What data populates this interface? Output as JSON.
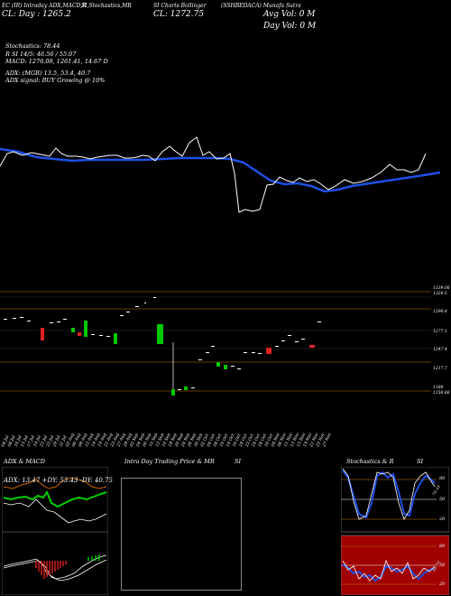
{
  "header": {
    "tabs": [
      "EC (IR) Intraday ADX,MACD,R",
      "SI,Stochastics,MR",
      "SI Charts  Bollinger",
      "(SSHBEDACA) Munafa Sutra"
    ],
    "open_line": "CL:  Day : 1265.2",
    "close_big": "CL: 1272.75",
    "avg_vol": "Avg Vol: 0   M",
    "day_vol": "Day Vol: 0   M"
  },
  "indicators": {
    "stochastics": "Stochastics: 78.44",
    "rsi": "R           SI 14/5: 46.56  / 55.07",
    "macd": "MACD: 1276.08, 1261.41,  14.67 D",
    "adx": "ADX:                       (MGR) 13.5,  53.4,  40.7",
    "adx_signal": "ADX  signal:                         BUY Growing @ 10%"
  },
  "price_axis": {
    "labels": [
      "1339.06",
      "1326.5",
      "1296.8",
      "1277.1",
      "1247.4",
      "1217.7",
      "1188",
      "1158.66"
    ]
  },
  "date_axis": {
    "labels": [
      "04 Jul",
      "08 Jul",
      "10 Jul",
      "15 Jul",
      "17 Jul",
      "19 Jul",
      "23 Jul",
      "25 Jul",
      "29 Jul",
      "31 Jul",
      "02 Aug",
      "06 Aug",
      "08 Aug",
      "12 Aug",
      "14 Aug",
      "19 Aug",
      "21 Aug",
      "23 Aug",
      "27 Aug",
      "29 Aug",
      "02 Sep",
      "04 Sep",
      "06 Sep",
      "10 Sep",
      "12 Sep",
      "16 Sep",
      "18 Sep",
      "20 Sep",
      "24 Sep",
      "26 Sep",
      "30 Sep",
      "02 Oct",
      "04 Oct",
      "08 Oct",
      "10 Oct",
      "14 Oct",
      "16 Oct",
      "18 Oct",
      "22 Oct",
      "24 Oct",
      "28 Oct",
      "30 Oct",
      "04 Nov",
      "06 Nov",
      "11 Nov",
      "13 Nov",
      "15 Nov",
      "19 Nov",
      "21 Nov",
      "25 Nov",
      "27 Nov"
    ]
  },
  "panels": {
    "adx_macd_title": "ADX  & MACD",
    "adx_readout": "ADX: 13.47  +DY: 53.43  -DY: 40.75",
    "intraday_title": "Intra  Day Trading Price  & MR",
    "intraday_si": "SI",
    "stoch_title": "Stochastics & R",
    "stoch_si": "SI",
    "stoch_levels": [
      "80",
      "50",
      "20"
    ],
    "rsi_levels": [
      "80",
      "50",
      "20"
    ],
    "stoch_value_tag": "78.44",
    "rsi_value_tag": "46.56"
  },
  "colors": {
    "price_line": "#ffffff",
    "moving_average": "#1e50e6",
    "bull": "#00c800",
    "bear": "#e02020",
    "rsi_bg": "#a00000",
    "grid_orange": "#c87800"
  }
}
